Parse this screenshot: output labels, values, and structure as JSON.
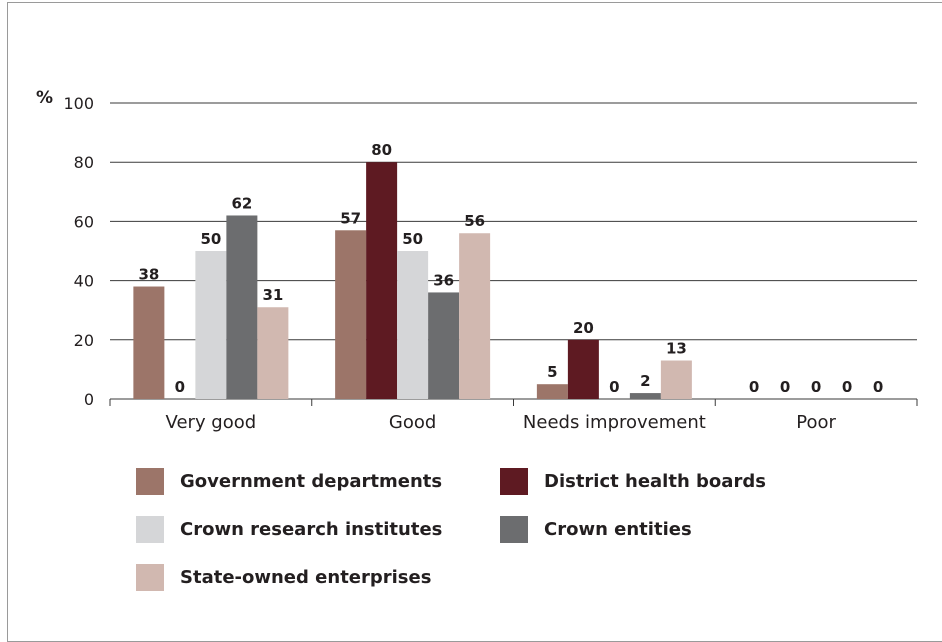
{
  "chart_data": {
    "type": "bar",
    "ylabel": "%",
    "ylim": [
      0,
      100
    ],
    "yticks": [
      0,
      20,
      40,
      60,
      80,
      100
    ],
    "grid": true,
    "categories": [
      "Very good",
      "Good",
      "Needs improvement",
      "Poor"
    ],
    "series": [
      {
        "name": "Government departments",
        "color": "#9c7569",
        "values": [
          38,
          57,
          5,
          0
        ]
      },
      {
        "name": "District health boards",
        "color": "#5e1a22",
        "values": [
          0,
          80,
          20,
          0
        ]
      },
      {
        "name": "Crown research institutes",
        "color": "#d5d6d8",
        "values": [
          50,
          50,
          0,
          0
        ]
      },
      {
        "name": "Crown entities",
        "color": "#6c6d6f",
        "values": [
          62,
          36,
          2,
          0
        ]
      },
      {
        "name": "State-owned enterprises",
        "color": "#d1b8b0",
        "values": [
          31,
          56,
          13,
          0
        ]
      }
    ],
    "legend_position": "bottom"
  }
}
